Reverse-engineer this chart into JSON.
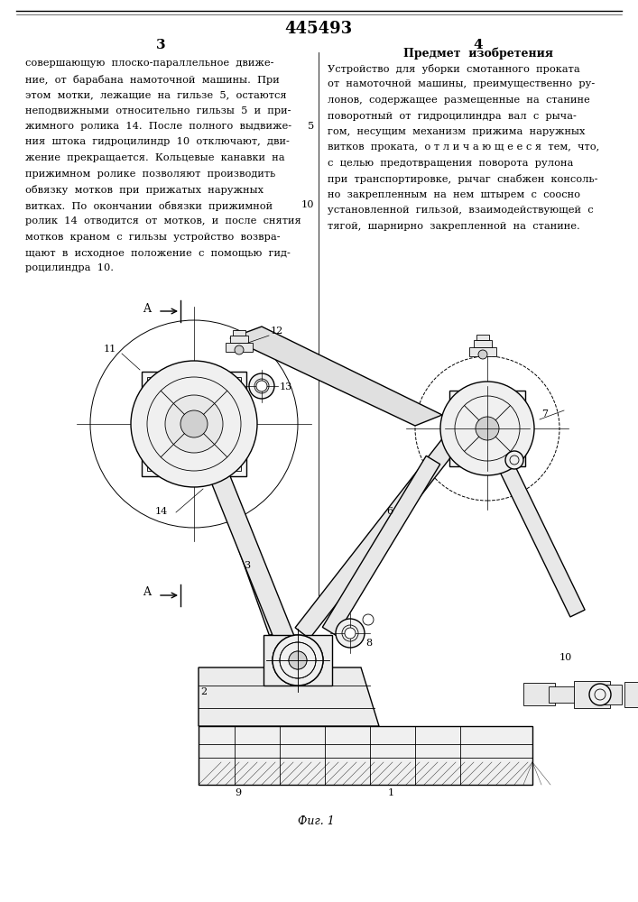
{
  "patent_number": "445493",
  "page_left": "3",
  "page_right": "4",
  "left_text_lines": [
    "совершающую  плоско-параллельное  движе-",
    "ние,  от  барабана  намоточной  машины.  При",
    "этом  мотки,  лежащие  на  гильзе  5,  остаются",
    "неподвижными  относительно  гильзы  5  и  при-",
    "жимного  ролика  14.  После  полного  выдвиже-",
    "ния  штока  гидроцилиндр  10  отключают,  дви-",
    "жение  прекращается.  Кольцевые  канавки  на",
    "прижимном  ролике  позволяют  производить",
    "обвязку  мотков  при  прижатых  наружных",
    "витках.  По  окончании  обвязки  прижимной",
    "ролик  14  отводится  от  мотков,  и  после  снятия",
    "мотков  краном  с  гильзы  устройство  возвра-",
    "щают  в  исходное  положение  с  помощью  гид-",
    "роцилиндра  10."
  ],
  "right_header": "Предмет  изобретения",
  "right_text_lines": [
    "Устройство  для  уборки  смотанного  проката",
    "от  намоточной  машины,  преимущественно  ру-",
    "лонов,  содержащее  размещенные  на  станине",
    "поворотный  от  гидроцилиндра  вал  с  рыча-",
    "гом,  несущим  механизм  прижима  наружных",
    "витков  проката,  о т л и ч а ю щ е е с я  тем,  что,",
    "с  целью  предотвращения  поворота  рулона",
    "при  транспортировке,  рычаг  снабжен  консоль-",
    "но  закрепленным  на  нем  штырем  с  соосно",
    "установленной  гильзой,  взаимодействующей  с",
    "тягой,  шарнирно  закрепленной  на  станине."
  ],
  "fig_label": "Фиг. 1",
  "background_color": "#ffffff",
  "text_color": "#000000",
  "line_num_5_row": 4,
  "line_num_10_row": 9
}
